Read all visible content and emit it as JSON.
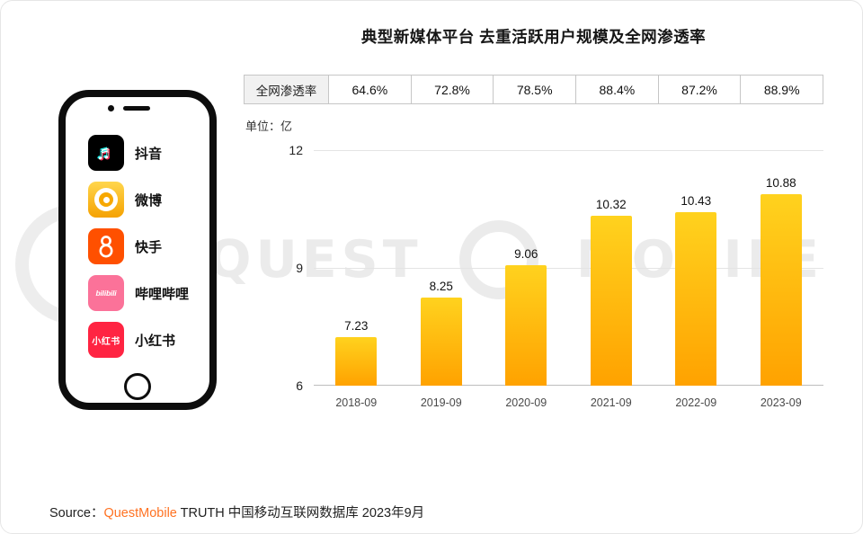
{
  "chart_data": {
    "type": "bar",
    "title": "典型新媒体平台 去重活跃用户规模及全网渗透率",
    "unit_label": "单位：亿",
    "unit": "亿",
    "categories": [
      "2018-09",
      "2019-09",
      "2020-09",
      "2021-09",
      "2022-09",
      "2023-09"
    ],
    "values": [
      7.23,
      8.25,
      9.06,
      10.32,
      10.43,
      10.88
    ],
    "value_labels": [
      "7.23",
      "8.25",
      "9.06",
      "10.32",
      "10.43",
      "10.88"
    ],
    "penetration_row": {
      "label": "全网渗透率",
      "values": [
        "64.6%",
        "72.8%",
        "78.5%",
        "88.4%",
        "87.2%",
        "88.9%"
      ]
    },
    "ylim": [
      6,
      12
    ],
    "yticks": [
      6,
      9,
      12
    ],
    "grid": true,
    "legend": "none",
    "bar_gradient": [
      "#FFD21E",
      "#FFA200"
    ]
  },
  "phone": {
    "apps": [
      {
        "name": "抖音",
        "icon": "douyin-icon",
        "icon_bg": "#000000",
        "glyph": "♬"
      },
      {
        "name": "微博",
        "icon": "weibo-icon",
        "icon_bg": "linear-gradient(180deg,#FFD64D,#F5A201)"
      },
      {
        "name": "快手",
        "icon": "kuaishou-icon",
        "icon_bg": "#FF5000"
      },
      {
        "name": "哔哩哔哩",
        "icon": "bilibili-icon",
        "icon_bg": "#FB7299",
        "icon_text": "bilibili"
      },
      {
        "name": "小红书",
        "icon": "xiaohongshu-icon",
        "icon_bg": "#FF2442",
        "icon_text": "小红书"
      }
    ]
  },
  "watermark": {
    "text_left": "QUEST",
    "text_right": "MOBILE"
  },
  "source": {
    "prefix": "Source：",
    "brand": "QuestMobile",
    "suffix": " TRUTH 中国移动互联网数据库 2023年9月",
    "brand_color": "#FF7222"
  }
}
